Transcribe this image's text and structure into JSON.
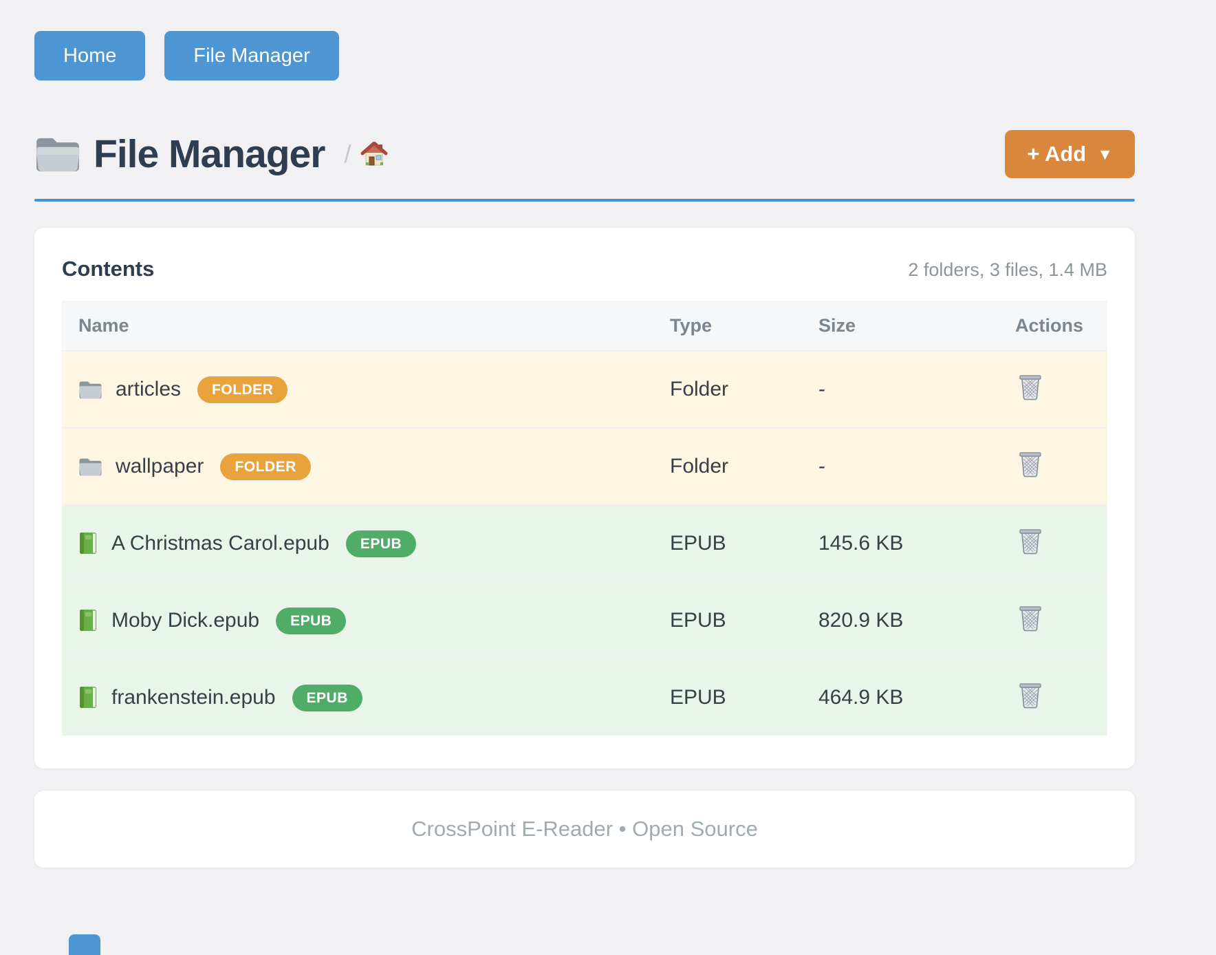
{
  "nav": {
    "items": [
      {
        "label": "Home"
      },
      {
        "label": "File Manager"
      }
    ]
  },
  "header": {
    "title_icon": "open-folder-icon",
    "title": "File Manager",
    "breadcrumb_separator": "/",
    "breadcrumb_home_icon": "home-icon",
    "add_button": {
      "label": "+ Add",
      "caret": "▼"
    }
  },
  "panel": {
    "heading": "Contents",
    "summary": "2 folders, 3 files, 1.4 MB",
    "columns": [
      "Name",
      "Type",
      "Size",
      "Actions"
    ],
    "rows": [
      {
        "kind": "folder",
        "icon": "folder-icon",
        "name": "articles",
        "badge": "FOLDER",
        "type": "Folder",
        "size": "-",
        "action": "trash-icon"
      },
      {
        "kind": "folder",
        "icon": "folder-icon",
        "name": "wallpaper",
        "badge": "FOLDER",
        "type": "Folder",
        "size": "-",
        "action": "trash-icon"
      },
      {
        "kind": "epub",
        "icon": "book-icon",
        "name": "A Christmas Carol.epub",
        "badge": "EPUB",
        "type": "EPUB",
        "size": "145.6 KB",
        "action": "trash-icon"
      },
      {
        "kind": "epub",
        "icon": "book-icon",
        "name": "Moby Dick.epub",
        "badge": "EPUB",
        "type": "EPUB",
        "size": "820.9 KB",
        "action": "trash-icon"
      },
      {
        "kind": "epub",
        "icon": "book-icon",
        "name": "frankenstein.epub",
        "badge": "EPUB",
        "type": "EPUB",
        "size": "464.9 KB",
        "action": "trash-icon"
      }
    ]
  },
  "footer": {
    "text": "CrossPoint E-Reader • Open Source"
  },
  "colors": {
    "accent_blue": "#4e95d3",
    "divider_blue": "#4a90d9",
    "accent_orange": "#d9873c",
    "badge_folder": "#e9a33c",
    "badge_epub": "#50ad68",
    "row_folder_bg": "#fdf6e3",
    "row_epub_bg": "#e9f4ea"
  }
}
